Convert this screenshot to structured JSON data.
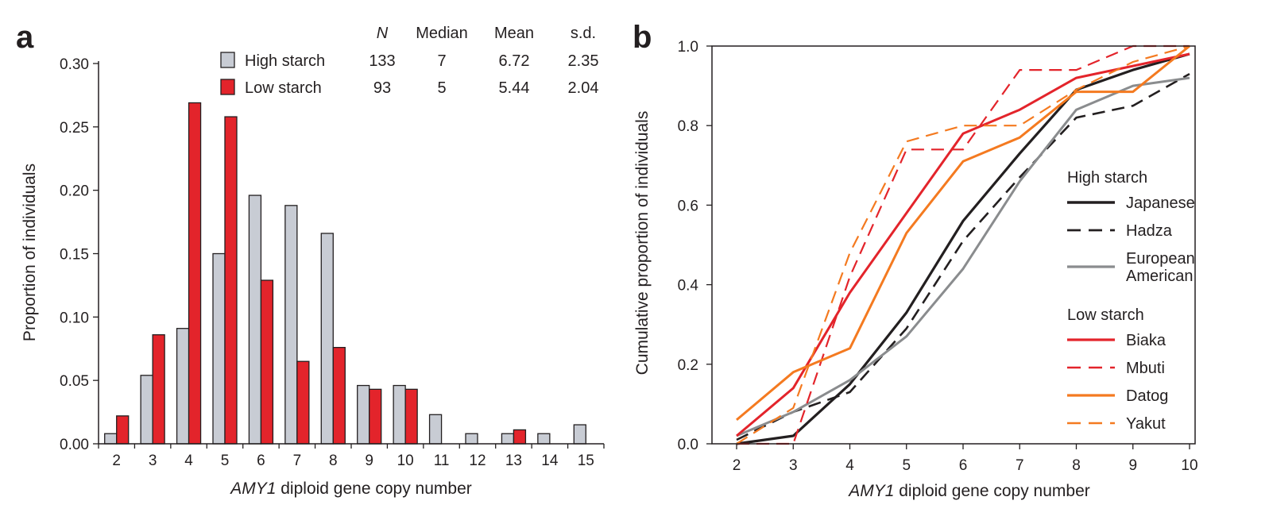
{
  "chart_data": [
    {
      "panel_label": "a",
      "type": "bar",
      "xlabel_italic": "AMY1",
      "xlabel_rest": " diploid gene copy number",
      "ylabel": "Proportion of individuals",
      "categories": [
        "2",
        "3",
        "4",
        "5",
        "6",
        "7",
        "8",
        "9",
        "10",
        "11",
        "12",
        "13",
        "14",
        "15"
      ],
      "yticks": [
        "0.00",
        "0.05",
        "0.10",
        "0.15",
        "0.20",
        "0.25",
        "0.30"
      ],
      "ylim": [
        0,
        0.3
      ],
      "series": [
        {
          "name": "High starch",
          "color": "#c8ccd4",
          "values": [
            0.008,
            0.054,
            0.091,
            0.15,
            0.196,
            0.188,
            0.166,
            0.046,
            0.046,
            0.023,
            0.008,
            0.008,
            0.008,
            0.015
          ]
        },
        {
          "name": "Low starch",
          "color": "#e3242b",
          "values": [
            0.022,
            0.086,
            0.269,
            0.258,
            0.129,
            0.065,
            0.076,
            0.043,
            0.043,
            0,
            0,
            0.011,
            0,
            0
          ]
        }
      ],
      "stats_table": {
        "headers": [
          "N",
          "Median",
          "Mean",
          "s.d."
        ],
        "rows": [
          {
            "name": "High starch",
            "values": [
              "133",
              "7",
              "6.72",
              "2.35"
            ]
          },
          {
            "name": "Low starch",
            "values": [
              "93",
              "5",
              "5.44",
              "2.04"
            ]
          }
        ]
      }
    },
    {
      "panel_label": "b",
      "type": "line",
      "xlabel_italic": "AMY1",
      "xlabel_rest": " diploid gene copy number",
      "ylabel": "Cumulative proportion of individuals",
      "x": [
        2,
        3,
        4,
        5,
        6,
        7,
        8,
        9,
        10
      ],
      "xticks": [
        "2",
        "3",
        "4",
        "5",
        "6",
        "7",
        "8",
        "9",
        "10"
      ],
      "yticks": [
        "0.0",
        "0.2",
        "0.4",
        "0.6",
        "0.8",
        "1.0"
      ],
      "xlim": [
        2,
        10
      ],
      "ylim": [
        0,
        1.0
      ],
      "legend_groups": [
        {
          "title": "High starch",
          "items": [
            "Japanese",
            "Hadza",
            "European American"
          ]
        },
        {
          "title": "Low starch",
          "items": [
            "Biaka",
            "Mbuti",
            "Datog",
            "Yakut"
          ]
        }
      ],
      "series": [
        {
          "name": "Japanese",
          "label_lines": [
            "Japanese"
          ],
          "color": "#231f20",
          "dash": "solid",
          "width": 3.2,
          "points": [
            [
              2,
              0
            ],
            [
              3,
              0.02
            ],
            [
              4,
              0.15
            ],
            [
              5,
              0.33
            ],
            [
              6,
              0.56
            ],
            [
              7,
              0.73
            ],
            [
              8,
              0.89
            ],
            [
              9,
              0.94
            ],
            [
              10,
              0.98
            ]
          ]
        },
        {
          "name": "Hadza",
          "label_lines": [
            "Hadza"
          ],
          "color": "#231f20",
          "dash": "dashed",
          "width": 2.6,
          "points": [
            [
              2,
              0.01
            ],
            [
              3,
              0.08
            ],
            [
              4,
              0.13
            ],
            [
              5,
              0.29
            ],
            [
              6,
              0.51
            ],
            [
              7,
              0.67
            ],
            [
              8,
              0.82
            ],
            [
              9,
              0.85
            ],
            [
              10,
              0.93
            ]
          ]
        },
        {
          "name": "European American",
          "label_lines": [
            "European",
            "American"
          ],
          "color": "#8a8c8e",
          "dash": "solid",
          "width": 3,
          "points": [
            [
              2,
              0.02
            ],
            [
              3,
              0.08
            ],
            [
              4,
              0.16
            ],
            [
              5,
              0.27
            ],
            [
              6,
              0.44
            ],
            [
              7,
              0.66
            ],
            [
              8,
              0.84
            ],
            [
              9,
              0.9
            ],
            [
              10,
              0.92
            ]
          ]
        },
        {
          "name": "Biaka",
          "label_lines": [
            "Biaka"
          ],
          "color": "#e3242b",
          "dash": "solid",
          "width": 3,
          "points": [
            [
              2,
              0.02
            ],
            [
              3,
              0.14
            ],
            [
              4,
              0.38
            ],
            [
              5,
              0.58
            ],
            [
              6,
              0.78
            ],
            [
              7,
              0.84
            ],
            [
              8,
              0.92
            ],
            [
              9,
              0.95
            ],
            [
              10,
              0.98
            ]
          ]
        },
        {
          "name": "Mbuti",
          "label_lines": [
            "Mbuti"
          ],
          "color": "#e3242b",
          "dash": "dashed",
          "width": 2.2,
          "points": [
            [
              2,
              0
            ],
            [
              3,
              0
            ],
            [
              4,
              0.42
            ],
            [
              5,
              0.74
            ],
            [
              6,
              0.74
            ],
            [
              7,
              0.94
            ],
            [
              8,
              0.94
            ],
            [
              9,
              1.0
            ],
            [
              10,
              1.0
            ]
          ]
        },
        {
          "name": "Datog",
          "label_lines": [
            "Datog"
          ],
          "color": "#f47a20",
          "dash": "solid",
          "width": 3,
          "points": [
            [
              2,
              0.06
            ],
            [
              3,
              0.18
            ],
            [
              4,
              0.24
            ],
            [
              5,
              0.53
            ],
            [
              6,
              0.71
            ],
            [
              7,
              0.77
            ],
            [
              8,
              0.885
            ],
            [
              9,
              0.885
            ],
            [
              10,
              1.0
            ]
          ]
        },
        {
          "name": "Yakut",
          "label_lines": [
            "Yakut"
          ],
          "color": "#f47a20",
          "dash": "dashed",
          "width": 2.2,
          "points": [
            [
              2,
              0
            ],
            [
              3,
              0.09
            ],
            [
              4,
              0.48
            ],
            [
              5,
              0.76
            ],
            [
              6,
              0.8
            ],
            [
              7,
              0.8
            ],
            [
              8,
              0.89
            ],
            [
              9,
              0.96
            ],
            [
              10,
              1.0
            ]
          ]
        }
      ]
    }
  ]
}
